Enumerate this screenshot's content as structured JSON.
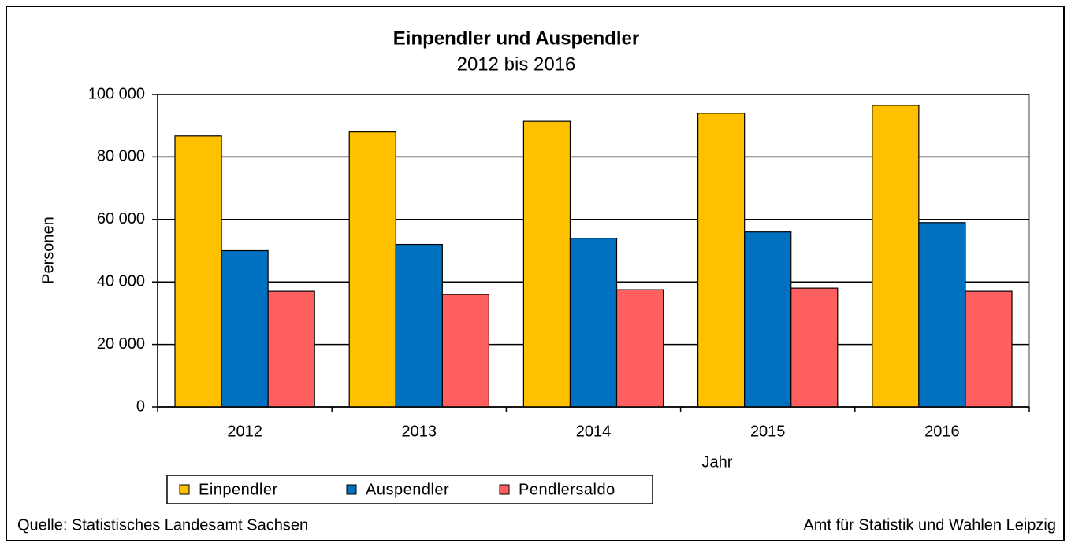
{
  "chart_data": {
    "type": "bar",
    "title": "Einpendler und Auspendler",
    "subtitle": "2012 bis 2016",
    "x_label": "Jahr",
    "y_label": "Personen",
    "categories": [
      "2012",
      "2013",
      "2014",
      "2015",
      "2016"
    ],
    "series": [
      {
        "name": "Einpendler",
        "color": "#ffc000",
        "values": [
          86700,
          88000,
          91400,
          94000,
          96500
        ]
      },
      {
        "name": "Auspendler",
        "color": "#0070c0",
        "values": [
          50000,
          52000,
          54000,
          56000,
          59000
        ]
      },
      {
        "name": "Pendlersaldo",
        "color": "#ff5f5f",
        "values": [
          37000,
          36000,
          37500,
          38000,
          37000
        ]
      }
    ],
    "ylim": [
      0,
      100000
    ],
    "yticks": [
      0,
      {
        "value": 20000,
        "label": "20 000"
      },
      {
        "value": 40000,
        "label": "40 000"
      },
      {
        "value": 60000,
        "label": "60 000"
      },
      {
        "value": 80000,
        "label": "80 000"
      },
      {
        "value": 100000,
        "label": "100 000"
      }
    ],
    "grid": true,
    "legend": "bottom",
    "source": "Quelle:  Statistisches Landesamt Sachsen",
    "credit": "Amt für  Statistik und Wahlen Leipzig"
  }
}
